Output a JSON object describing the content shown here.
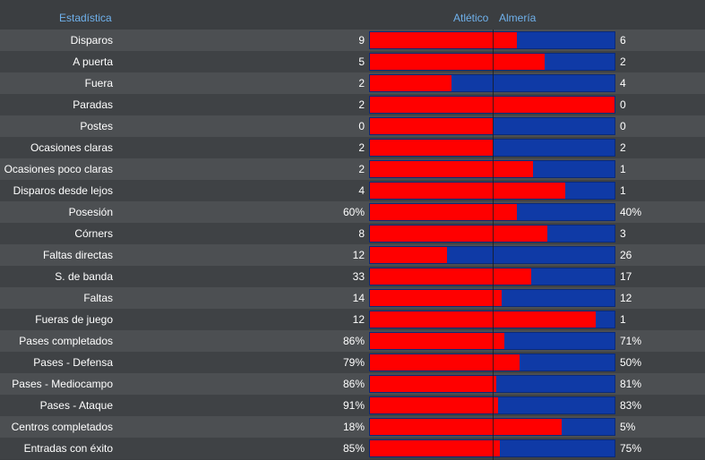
{
  "header": {
    "stat_label": "Estadística",
    "home_team": "Atlético",
    "away_team": "Almería"
  },
  "colors": {
    "home": "#ff0000",
    "away": "#0f3aa6",
    "accent": "#6fb1ec"
  },
  "stats": [
    {
      "label": "Disparos",
      "home": "9",
      "away": "6",
      "share": 0.6
    },
    {
      "label": "A puerta",
      "home": "5",
      "away": "2",
      "share": 0.714
    },
    {
      "label": "Fuera",
      "home": "2",
      "away": "4",
      "share": 0.333
    },
    {
      "label": "Paradas",
      "home": "2",
      "away": "0",
      "share": 1.0
    },
    {
      "label": "Postes",
      "home": "0",
      "away": "0",
      "share": 0.5
    },
    {
      "label": "Ocasiones claras",
      "home": "2",
      "away": "2",
      "share": 0.5
    },
    {
      "label": "Ocasiones poco claras",
      "home": "2",
      "away": "1",
      "share": 0.667
    },
    {
      "label": "Disparos desde lejos",
      "home": "4",
      "away": "1",
      "share": 0.8
    },
    {
      "label": "Posesión",
      "home": "60%",
      "away": "40%",
      "share": 0.6
    },
    {
      "label": "Córners",
      "home": "8",
      "away": "3",
      "share": 0.727
    },
    {
      "label": "Faltas directas",
      "home": "12",
      "away": "26",
      "share": 0.316
    },
    {
      "label": "S. de banda",
      "home": "33",
      "away": "17",
      "share": 0.66
    },
    {
      "label": "Faltas",
      "home": "14",
      "away": "12",
      "share": 0.538
    },
    {
      "label": "Fueras de juego",
      "home": "12",
      "away": "1",
      "share": 0.923
    },
    {
      "label": "Pases completados",
      "home": "86%",
      "away": "71%",
      "share": 0.548
    },
    {
      "label": "Pases - Defensa",
      "home": "79%",
      "away": "50%",
      "share": 0.612
    },
    {
      "label": "Pases - Mediocampo",
      "home": "86%",
      "away": "81%",
      "share": 0.515
    },
    {
      "label": "Pases - Ataque",
      "home": "91%",
      "away": "83%",
      "share": 0.523
    },
    {
      "label": "Centros completados",
      "home": "18%",
      "away": "5%",
      "share": 0.783
    },
    {
      "label": "Entradas con éxito",
      "home": "85%",
      "away": "75%",
      "share": 0.531
    }
  ]
}
